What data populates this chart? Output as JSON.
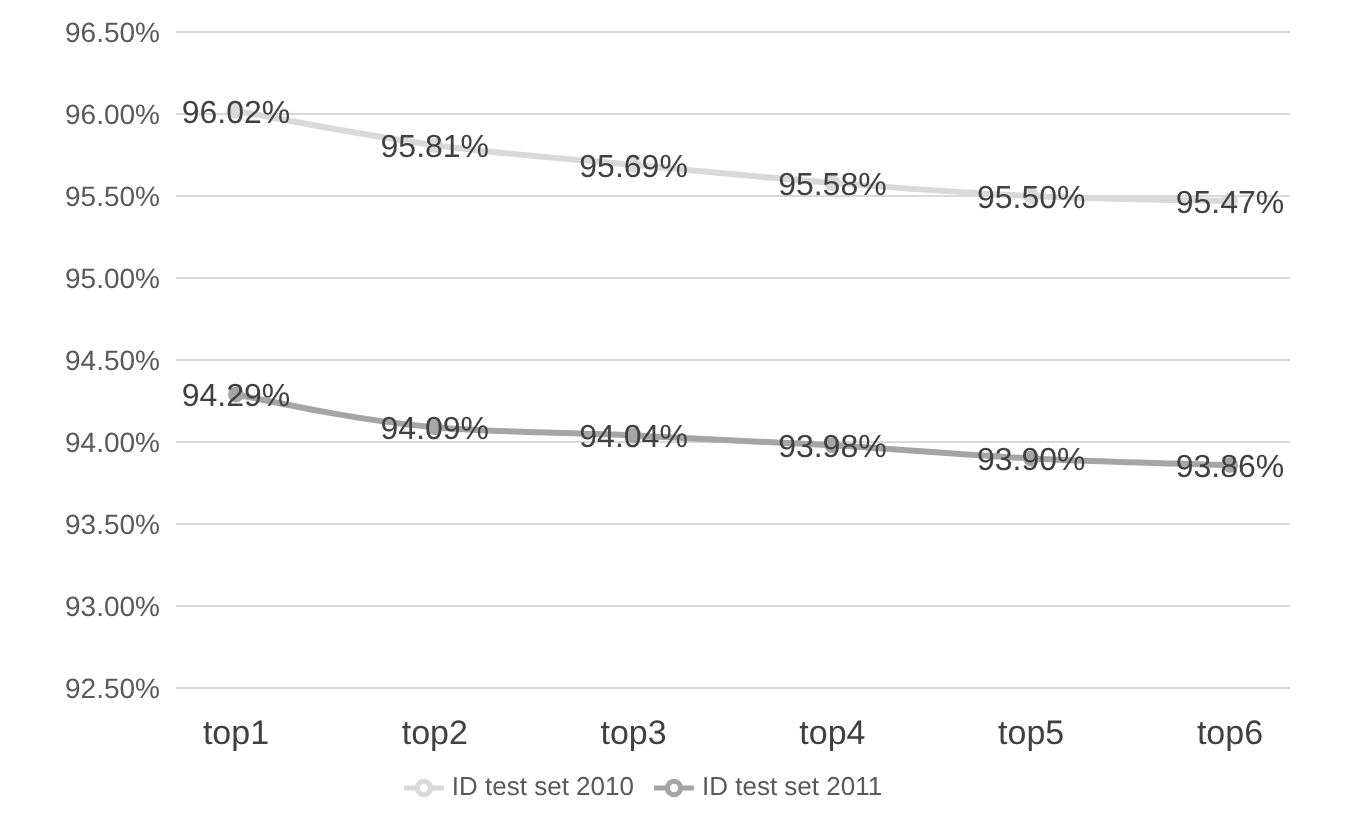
{
  "chart_data": {
    "type": "line",
    "categories": [
      "top1",
      "top2",
      "top3",
      "top4",
      "top5",
      "top6"
    ],
    "series": [
      {
        "name": "ID test set 2010",
        "color": "#d9d9d9",
        "values": [
          96.02,
          95.81,
          95.69,
          95.58,
          95.5,
          95.47
        ],
        "value_labels": [
          "96.02%",
          "95.81%",
          "95.69%",
          "95.58%",
          "95.50%",
          "95.47%"
        ]
      },
      {
        "name": "ID test set 2011",
        "color": "#a5a5a5",
        "values": [
          94.29,
          94.09,
          94.04,
          93.98,
          93.9,
          93.86
        ],
        "value_labels": [
          "94.29%",
          "94.09%",
          "94.04%",
          "93.98%",
          "93.90%",
          "93.86%"
        ]
      }
    ],
    "ylim": [
      92.5,
      96.5
    ],
    "yticks": [
      {
        "value": 92.5,
        "label": "92.50%"
      },
      {
        "value": 93,
        "label": "93.00%"
      },
      {
        "value": 93.5,
        "label": "93.50%"
      },
      {
        "value": 94,
        "label": "94.00%"
      },
      {
        "value": 94.5,
        "label": "94.50%"
      },
      {
        "value": 95,
        "label": "95.00%"
      },
      {
        "value": 95.5,
        "label": "95.50%"
      },
      {
        "value": 96,
        "label": "96.00%"
      },
      {
        "value": 96.5,
        "label": "96.50%"
      }
    ],
    "grid": "y",
    "legend": "bottom",
    "marker": "circle",
    "line_style": "solid"
  }
}
